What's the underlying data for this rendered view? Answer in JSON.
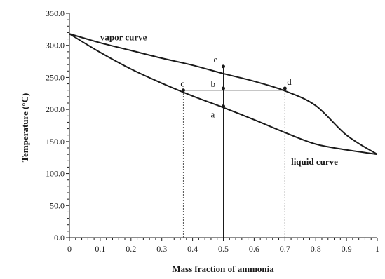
{
  "chart_data": {
    "type": "line",
    "title": "",
    "xlabel": "Mass fraction of ammonia",
    "ylabel": "Temperature (°C)",
    "xlim": [
      0,
      1
    ],
    "ylim": [
      0,
      350
    ],
    "grid": false,
    "x_ticks": [
      0,
      0.1,
      0.2,
      0.3,
      0.4,
      0.5,
      0.6,
      0.7,
      0.8,
      0.9,
      1
    ],
    "x_tick_labels": [
      "0",
      "0.1",
      "0.2",
      "0.3",
      "0.4",
      "0.5",
      "0.6",
      "0.7",
      "0.8",
      "0.9",
      "1"
    ],
    "y_ticks": [
      0,
      50,
      100,
      150,
      200,
      250,
      300,
      350
    ],
    "y_tick_labels": [
      "0.0",
      "50.0",
      "100.0",
      "150.0",
      "200.0",
      "250.0",
      "300.0",
      "350.0"
    ],
    "series": [
      {
        "name": "vapor curve",
        "x": [
          0,
          0.1,
          0.2,
          0.3,
          0.4,
          0.5,
          0.6,
          0.7,
          0.8,
          0.9,
          1
        ],
        "y": [
          318,
          304,
          292,
          280,
          269,
          256,
          244,
          229,
          206,
          160,
          130
        ],
        "color": "#1a1a1a"
      },
      {
        "name": "liquid curve",
        "x": [
          0,
          0.1,
          0.2,
          0.3,
          0.4,
          0.5,
          0.6,
          0.7,
          0.8,
          0.9,
          1
        ],
        "y": [
          318,
          289,
          263,
          241,
          221,
          203,
          184,
          164,
          146,
          137,
          130
        ],
        "color": "#1a1a1a"
      }
    ],
    "points": [
      {
        "label": "a",
        "x": 0.5,
        "y": 205
      },
      {
        "label": "b",
        "x": 0.5,
        "y": 233
      },
      {
        "label": "c",
        "x": 0.37,
        "y": 230
      },
      {
        "label": "d",
        "x": 0.7,
        "y": 233
      },
      {
        "label": "e",
        "x": 0.5,
        "y": 267
      }
    ],
    "reference_lines": {
      "vertical_solid_x": 0.5,
      "vertical_solid_top_y": 267,
      "vertical_dotted": [
        0.37,
        0.7
      ],
      "tie_line": {
        "x_from": 0.37,
        "x_to": 0.7,
        "y": 230
      }
    },
    "annotations": [
      {
        "text": "vapor curve",
        "x": 0.1,
        "y": 308
      },
      {
        "text": "liquid curve",
        "x": 0.72,
        "y": 114
      }
    ]
  }
}
